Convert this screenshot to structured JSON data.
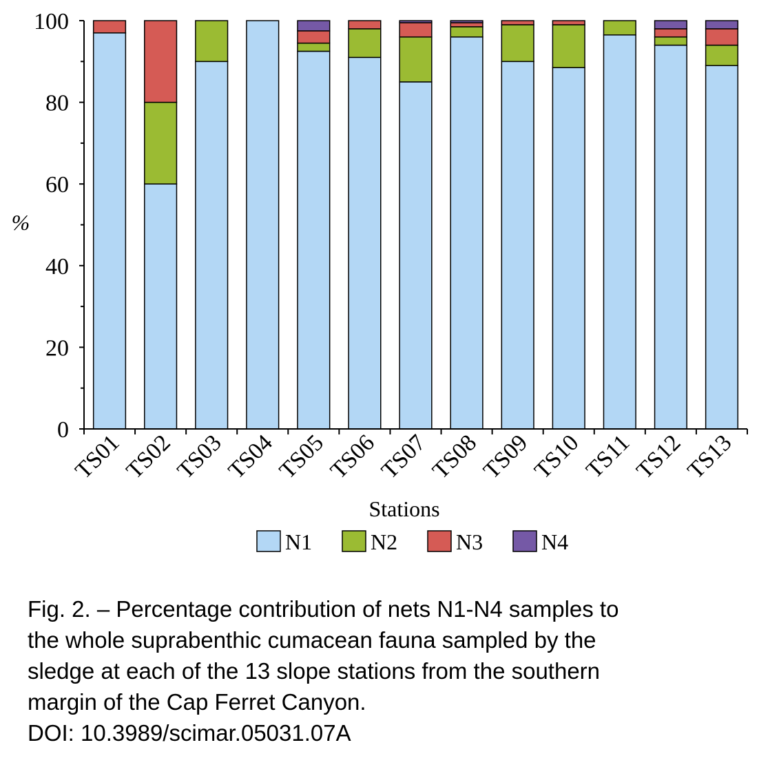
{
  "chart_data": {
    "type": "bar",
    "stacked": true,
    "xlabel": "Stations",
    "ylabel": "%",
    "ylim": [
      0,
      100
    ],
    "yticks": [
      0,
      20,
      40,
      60,
      80,
      100
    ],
    "legend_position": "bottom",
    "categories": [
      "TS01",
      "TS02",
      "TS03",
      "TS04",
      "TS05",
      "TS06",
      "TS07",
      "TS08",
      "TS09",
      "TS10",
      "TS11",
      "TS12",
      "TS13"
    ],
    "series": [
      {
        "name": "N1",
        "color": "#B3D7F5",
        "values": [
          97,
          60,
          90,
          100,
          92.5,
          91,
          85,
          96,
          90,
          88.5,
          96.5,
          94,
          89
        ]
      },
      {
        "name": "N2",
        "color": "#9BBB33",
        "values": [
          0,
          20,
          10,
          0,
          2,
          7,
          11,
          2.5,
          9,
          10.5,
          3.5,
          2,
          5
        ]
      },
      {
        "name": "N3",
        "color": "#D55B55",
        "values": [
          3,
          20,
          0,
          0,
          3,
          2,
          3.5,
          1,
          1,
          1,
          0,
          2,
          4
        ]
      },
      {
        "name": "N4",
        "color": "#7559A6",
        "values": [
          0,
          0,
          0,
          0,
          2.5,
          0,
          0.5,
          0.5,
          0,
          0,
          0,
          2,
          2
        ]
      }
    ]
  },
  "caption": {
    "lines": [
      "Fig. 2. – Percentage contribution of nets N1-N4 samples to",
      "the whole suprabenthic cumacean fauna sampled by the",
      "sledge at each of the 13 slope stations from the southern",
      "margin of the Cap Ferret Canyon.",
      "DOI: 10.3989/scimar.05031.07A"
    ]
  }
}
